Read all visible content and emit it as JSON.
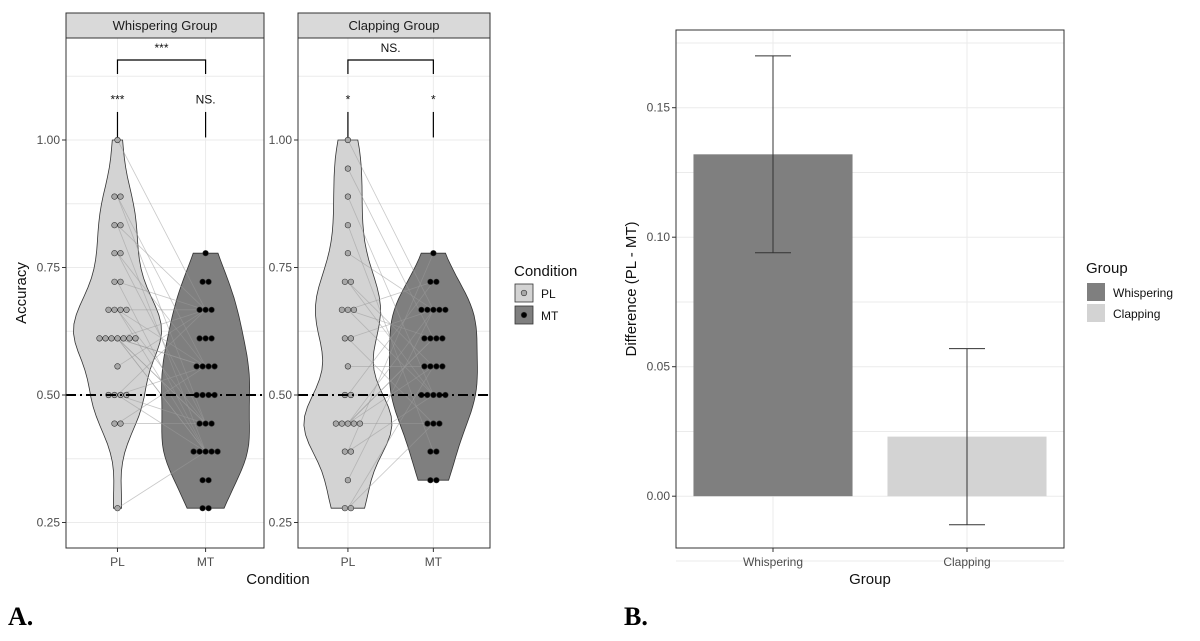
{
  "chart_data": [
    {
      "type": "violin",
      "panel_label": "A.",
      "facets": [
        {
          "title": "Whispering Group",
          "bracket_label": "***",
          "violins": [
            {
              "condition": "PL",
              "significance": "***",
              "points": [
                1.0,
                0.889,
                0.889,
                0.833,
                0.833,
                0.778,
                0.778,
                0.722,
                0.722,
                0.667,
                0.667,
                0.667,
                0.667,
                0.611,
                0.611,
                0.611,
                0.611,
                0.611,
                0.611,
                0.611,
                0.556,
                0.5,
                0.5,
                0.5,
                0.5,
                0.444,
                0.444,
                0.278
              ]
            },
            {
              "condition": "MT",
              "significance": "NS.",
              "points": [
                0.778,
                0.722,
                0.722,
                0.667,
                0.667,
                0.667,
                0.611,
                0.611,
                0.611,
                0.556,
                0.556,
                0.556,
                0.556,
                0.5,
                0.5,
                0.5,
                0.5,
                0.444,
                0.444,
                0.444,
                0.389,
                0.389,
                0.389,
                0.389,
                0.389,
                0.333,
                0.333,
                0.278,
                0.278
              ]
            }
          ]
        },
        {
          "title": "Clapping Group",
          "bracket_label": "NS.",
          "violins": [
            {
              "condition": "PL",
              "significance": "*",
              "points": [
                1.0,
                0.944,
                0.889,
                0.833,
                0.778,
                0.722,
                0.722,
                0.667,
                0.667,
                0.667,
                0.611,
                0.611,
                0.556,
                0.5,
                0.5,
                0.444,
                0.444,
                0.444,
                0.444,
                0.444,
                0.389,
                0.389,
                0.333,
                0.278,
                0.278
              ]
            },
            {
              "condition": "MT",
              "significance": "*",
              "points": [
                0.778,
                0.722,
                0.722,
                0.667,
                0.667,
                0.667,
                0.667,
                0.667,
                0.611,
                0.611,
                0.611,
                0.611,
                0.556,
                0.556,
                0.556,
                0.556,
                0.5,
                0.5,
                0.5,
                0.5,
                0.5,
                0.444,
                0.444,
                0.444,
                0.389,
                0.389,
                0.333,
                0.333
              ]
            }
          ]
        }
      ],
      "xlabel": "Condition",
      "ylabel": "Accuracy",
      "categories": [
        "PL",
        "MT"
      ],
      "ylim": [
        0.2,
        1.2
      ],
      "yticks": [
        0.25,
        0.5,
        0.75,
        1.0
      ],
      "ytick_labels": [
        "0.25",
        "0.50",
        "0.75",
        "1.00"
      ],
      "reference_line": 0.5,
      "legend": {
        "title": "Condition",
        "position": "right",
        "items": [
          {
            "label": "PL",
            "color": "#d3d3d3",
            "point_color": "#a8a8a8"
          },
          {
            "label": "MT",
            "color": "#7f7f7f",
            "point_color": "#000000"
          }
        ]
      }
    },
    {
      "type": "bar",
      "panel_label": "B.",
      "categories": [
        "Whispering",
        "Clapping"
      ],
      "values": [
        0.132,
        0.023
      ],
      "error_lower": [
        0.094,
        -0.011
      ],
      "error_upper": [
        0.17,
        0.057
      ],
      "colors": [
        "#7f7f7f",
        "#d3d3d3"
      ],
      "xlabel": "Group",
      "ylabel": "Difference (PL - MT)",
      "ylim": [
        -0.02,
        0.18
      ],
      "yticks": [
        0.0,
        0.05,
        0.1,
        0.15
      ],
      "ytick_labels": [
        "0.00",
        "0.05",
        "0.10",
        "0.15"
      ],
      "legend": {
        "title": "Group",
        "position": "right",
        "items": [
          {
            "label": "Whispering",
            "color": "#7f7f7f"
          },
          {
            "label": "Clapping",
            "color": "#d3d3d3"
          }
        ]
      }
    }
  ]
}
